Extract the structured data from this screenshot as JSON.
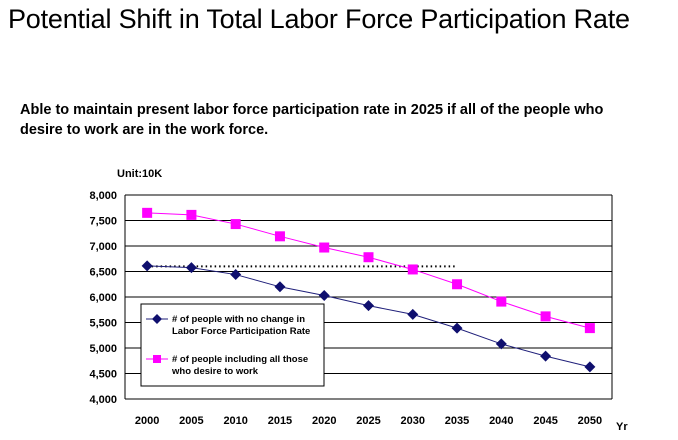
{
  "page": {
    "title": "Potential Shift in Total Labor Force Participation Rate",
    "subtitle_line1": "Able to maintain present labor force participation rate in 2025 if all of the people who",
    "subtitle_line2": "desire to work are in the work force."
  },
  "chart_data": {
    "type": "line",
    "unit_label": "Unit:10K",
    "xlabel": "Yr",
    "ylabel": "",
    "ylim": [
      4000,
      8000
    ],
    "y_ticks": [
      "4,000",
      "4,500",
      "5,000",
      "5,500",
      "6,000",
      "6,500",
      "7,000",
      "7,500",
      "8,000"
    ],
    "y_tick_values": [
      4000,
      4500,
      5000,
      5500,
      6000,
      6500,
      7000,
      7500,
      8000
    ],
    "categories": [
      "2000",
      "2005",
      "2010",
      "2015",
      "2020",
      "2025",
      "2030",
      "2035",
      "2040",
      "2045",
      "2050"
    ],
    "grid": true,
    "legend_position": "bottom-left",
    "series": [
      {
        "name_line1": "# of people with no change in",
        "name_line2": "Labor Force Participation Rate",
        "color": "#1f1f7a",
        "marker": "diamond",
        "values": [
          6610,
          6575,
          6440,
          6200,
          6030,
          5830,
          5660,
          5390,
          5080,
          4840,
          4630
        ]
      },
      {
        "name_line1": "# of people including all those",
        "name_line2": "who desire to work",
        "color": "#ff00ff",
        "marker": "square",
        "values": [
          7650,
          7610,
          7430,
          7190,
          6970,
          6780,
          6540,
          6250,
          5910,
          5620,
          5390
        ]
      }
    ],
    "reference_line": {
      "value": 6600,
      "from": "2000",
      "to": "2035",
      "style": "dotted"
    }
  }
}
